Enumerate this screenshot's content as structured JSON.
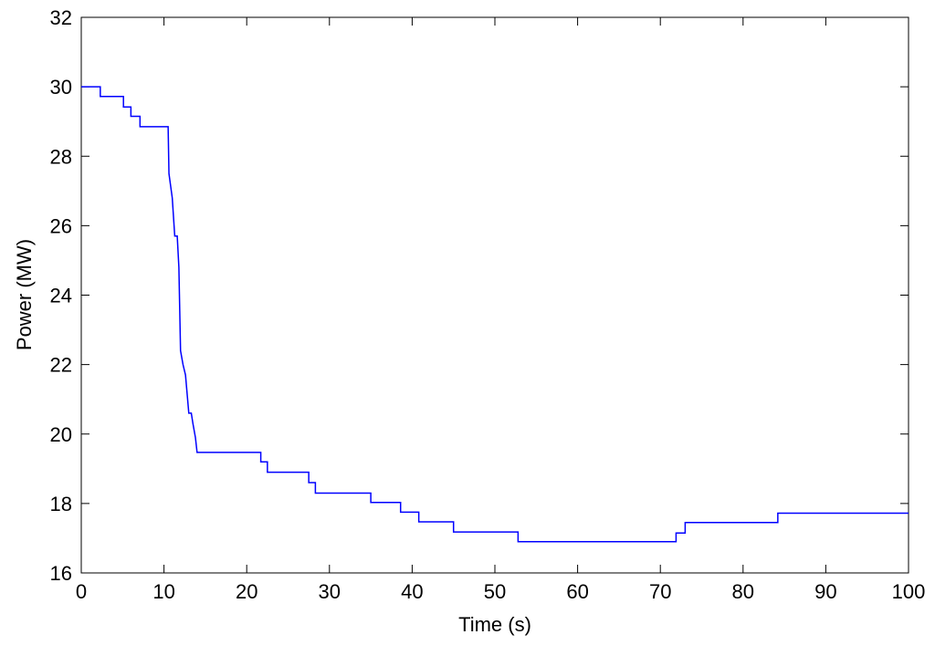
{
  "chart_data": {
    "type": "line",
    "x_label": "Time (s)",
    "y_label": "Power (MW)",
    "x": [
      0,
      2.3,
      2.3,
      5.1,
      5.1,
      6.0,
      6.0,
      7.1,
      7.1,
      10.5,
      10.6,
      11,
      11.3,
      11.6,
      11.8,
      12.0,
      12.3,
      12.6,
      13.0,
      13.3,
      13.5,
      13.8,
      14.0,
      21.7,
      21.7,
      22.5,
      22.5,
      27.5,
      27.5,
      28.3,
      28.3,
      35.0,
      35.0,
      38.6,
      38.6,
      40.8,
      40.8,
      45.0,
      45.0,
      52.8,
      52.8,
      71.9,
      71.9,
      73.0,
      73.0,
      84.2,
      84.2,
      100
    ],
    "values": [
      30,
      30,
      29.72,
      29.72,
      29.42,
      29.42,
      29.15,
      29.15,
      28.85,
      28.85,
      27.5,
      26.8,
      25.7,
      25.7,
      24.8,
      22.4,
      22.0,
      21.7,
      20.6,
      20.6,
      20.3,
      19.9,
      19.47,
      19.47,
      19.2,
      19.2,
      18.9,
      18.9,
      18.6,
      18.6,
      18.3,
      18.3,
      18.03,
      18.03,
      17.75,
      17.75,
      17.47,
      17.47,
      17.18,
      17.18,
      16.9,
      16.9,
      17.15,
      17.15,
      17.45,
      17.45,
      17.72,
      17.72
    ],
    "color": "#0000ff",
    "xlim": [
      0,
      100
    ],
    "xticks": [
      0,
      10,
      20,
      30,
      40,
      50,
      60,
      70,
      80,
      90,
      100
    ],
    "ylim": [
      16,
      32
    ],
    "yticks": [
      16,
      18,
      20,
      22,
      24,
      26,
      28,
      30,
      32
    ],
    "grid": false
  }
}
